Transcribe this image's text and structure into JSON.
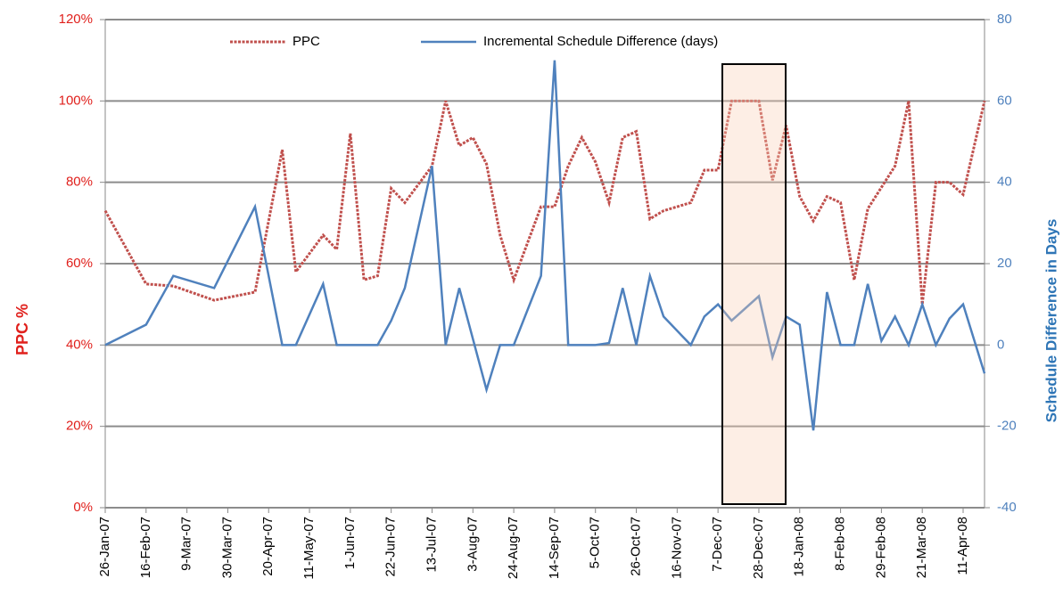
{
  "chart_data": {
    "type": "line",
    "ylabel": "PPC %",
    "y2label": "Schedule Difference in Days",
    "xlim": [
      "26-Jan-07",
      "22-Apr-08"
    ],
    "xticks": [
      "26-Jan-07",
      "16-Feb-07",
      "9-Mar-07",
      "30-Mar-07",
      "20-Apr-07",
      "11-May-07",
      "1-Jun-07",
      "22-Jun-07",
      "13-Jul-07",
      "3-Aug-07",
      "24-Aug-07",
      "14-Sep-07",
      "5-Oct-07",
      "26-Oct-07",
      "16-Nov-07",
      "7-Dec-07",
      "28-Dec-07",
      "18-Jan-08",
      "8-Feb-08",
      "29-Feb-08",
      "21-Mar-08",
      "11-Apr-08"
    ],
    "ylim": [
      0,
      120
    ],
    "yticks": [
      {
        "value": 0,
        "label": "0%"
      },
      {
        "value": 20,
        "label": "20%"
      },
      {
        "value": 40,
        "label": "40%"
      },
      {
        "value": 60,
        "label": "60%"
      },
      {
        "value": 80,
        "label": "80%"
      },
      {
        "value": 100,
        "label": "100%"
      },
      {
        "value": 120,
        "label": "120%"
      }
    ],
    "y2lim": [
      -40,
      80
    ],
    "y2ticks": [
      -40,
      -20,
      0,
      20,
      40,
      60,
      80
    ],
    "grid": true,
    "legend": "top",
    "series": [
      {
        "name": "PPC",
        "color": "#c0504d",
        "dashed": true,
        "x": [
          "26-Jan-07",
          "16-Feb-07",
          "2-Mar-07",
          "23-Mar-07",
          "13-Apr-07",
          "27-Apr-07",
          "4-May-07",
          "18-May-07",
          "25-May-07",
          "1-Jun-07",
          "8-Jun-07",
          "15-Jun-07",
          "22-Jun-07",
          "29-Jun-07",
          "13-Jul-07",
          "20-Jul-07",
          "27-Jul-07",
          "3-Aug-07",
          "10-Aug-07",
          "17-Aug-07",
          "24-Aug-07",
          "7-Sep-07",
          "14-Sep-07",
          "21-Sep-07",
          "28-Sep-07",
          "5-Oct-07",
          "12-Oct-07",
          "19-Oct-07",
          "26-Oct-07",
          "2-Nov-07",
          "9-Nov-07",
          "23-Nov-07",
          "30-Nov-07",
          "7-Dec-07",
          "14-Dec-07",
          "21-Dec-07",
          "28-Dec-07",
          "4-Jan-08",
          "11-Jan-08",
          "18-Jan-08",
          "25-Jan-08",
          "1-Feb-08",
          "8-Feb-08",
          "15-Feb-08",
          "22-Feb-08",
          "7-Mar-08",
          "14-Mar-08",
          "21-Mar-08",
          "28-Mar-08",
          "4-Apr-08",
          "11-Apr-08",
          "22-Apr-08"
        ],
        "values": [
          73,
          55,
          54.5,
          51,
          53,
          88,
          58,
          67,
          63.5,
          92,
          56,
          57,
          78.5,
          75,
          84,
          100,
          89,
          91,
          84.5,
          67,
          56,
          74,
          74,
          84,
          91,
          85,
          75,
          91,
          92.5,
          71,
          73,
          75,
          83,
          83,
          100,
          100,
          100,
          80.5,
          94,
          76.5,
          70.5,
          76.5,
          75,
          56,
          73.5,
          84,
          100,
          50,
          80,
          80,
          77,
          100
        ]
      },
      {
        "name": "Incremental Schedule Difference (days)",
        "color": "#4f81bd",
        "axis": "y2",
        "x": [
          "26-Jan-07",
          "16-Feb-07",
          "2-Mar-07",
          "23-Mar-07",
          "13-Apr-07",
          "27-Apr-07",
          "4-May-07",
          "18-May-07",
          "25-May-07",
          "15-Jun-07",
          "22-Jun-07",
          "29-Jun-07",
          "13-Jul-07",
          "20-Jul-07",
          "27-Jul-07",
          "10-Aug-07",
          "17-Aug-07",
          "24-Aug-07",
          "7-Sep-07",
          "14-Sep-07",
          "21-Sep-07",
          "5-Oct-07",
          "12-Oct-07",
          "19-Oct-07",
          "26-Oct-07",
          "2-Nov-07",
          "9-Nov-07",
          "23-Nov-07",
          "30-Nov-07",
          "7-Dec-07",
          "14-Dec-07",
          "28-Dec-07",
          "4-Jan-08",
          "11-Jan-08",
          "18-Jan-08",
          "25-Jan-08",
          "1-Feb-08",
          "8-Feb-08",
          "15-Feb-08",
          "22-Feb-08",
          "29-Feb-08",
          "7-Mar-08",
          "14-Mar-08",
          "21-Mar-08",
          "28-Mar-08",
          "4-Apr-08",
          "11-Apr-08",
          "22-Apr-08"
        ],
        "values": [
          0,
          5,
          17,
          14,
          34,
          0,
          0,
          15,
          0,
          0,
          6,
          14,
          44,
          0,
          14,
          -11,
          0,
          0,
          17,
          70,
          0,
          0,
          0.5,
          14,
          0,
          17,
          7,
          0,
          7,
          10,
          6,
          12,
          -3,
          7,
          5,
          -21,
          13,
          0,
          0,
          15,
          1,
          7,
          0,
          10,
          0,
          6.5,
          10,
          -7
        ]
      }
    ]
  }
}
